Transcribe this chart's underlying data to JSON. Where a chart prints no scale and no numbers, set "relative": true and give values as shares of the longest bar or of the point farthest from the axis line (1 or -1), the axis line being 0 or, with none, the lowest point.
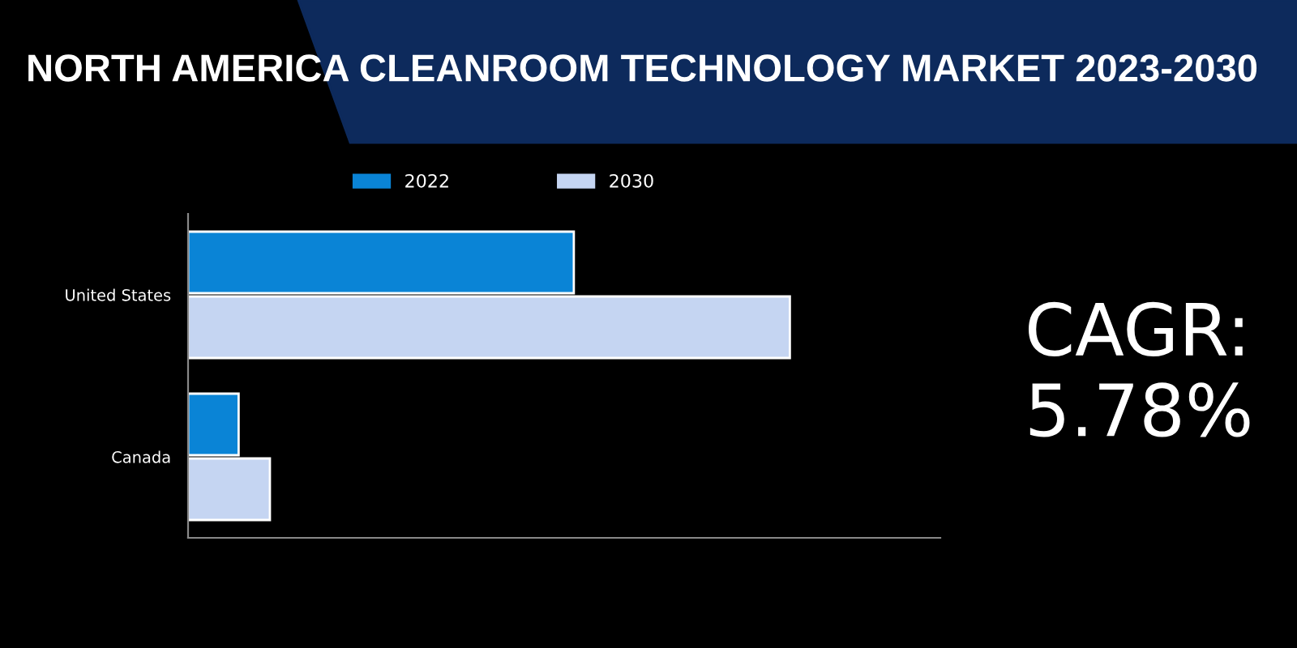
{
  "chart_data": {
    "type": "bar",
    "orientation": "horizontal",
    "relative": true,
    "title": "NORTH AMERICA CLEANROOM TECHNOLOGY MARKET 2023-2030",
    "categories": [
      "United States",
      "Canada"
    ],
    "series": [
      {
        "name": "2022",
        "color": "#0a84d6",
        "values": [
          0.641,
          0.084
        ]
      },
      {
        "name": "2030",
        "color": "#c5d5f2",
        "values": [
          1,
          0.136
        ]
      }
    ],
    "legend": "top",
    "annotations": [
      "CAGR:\n5.78%"
    ]
  }
}
